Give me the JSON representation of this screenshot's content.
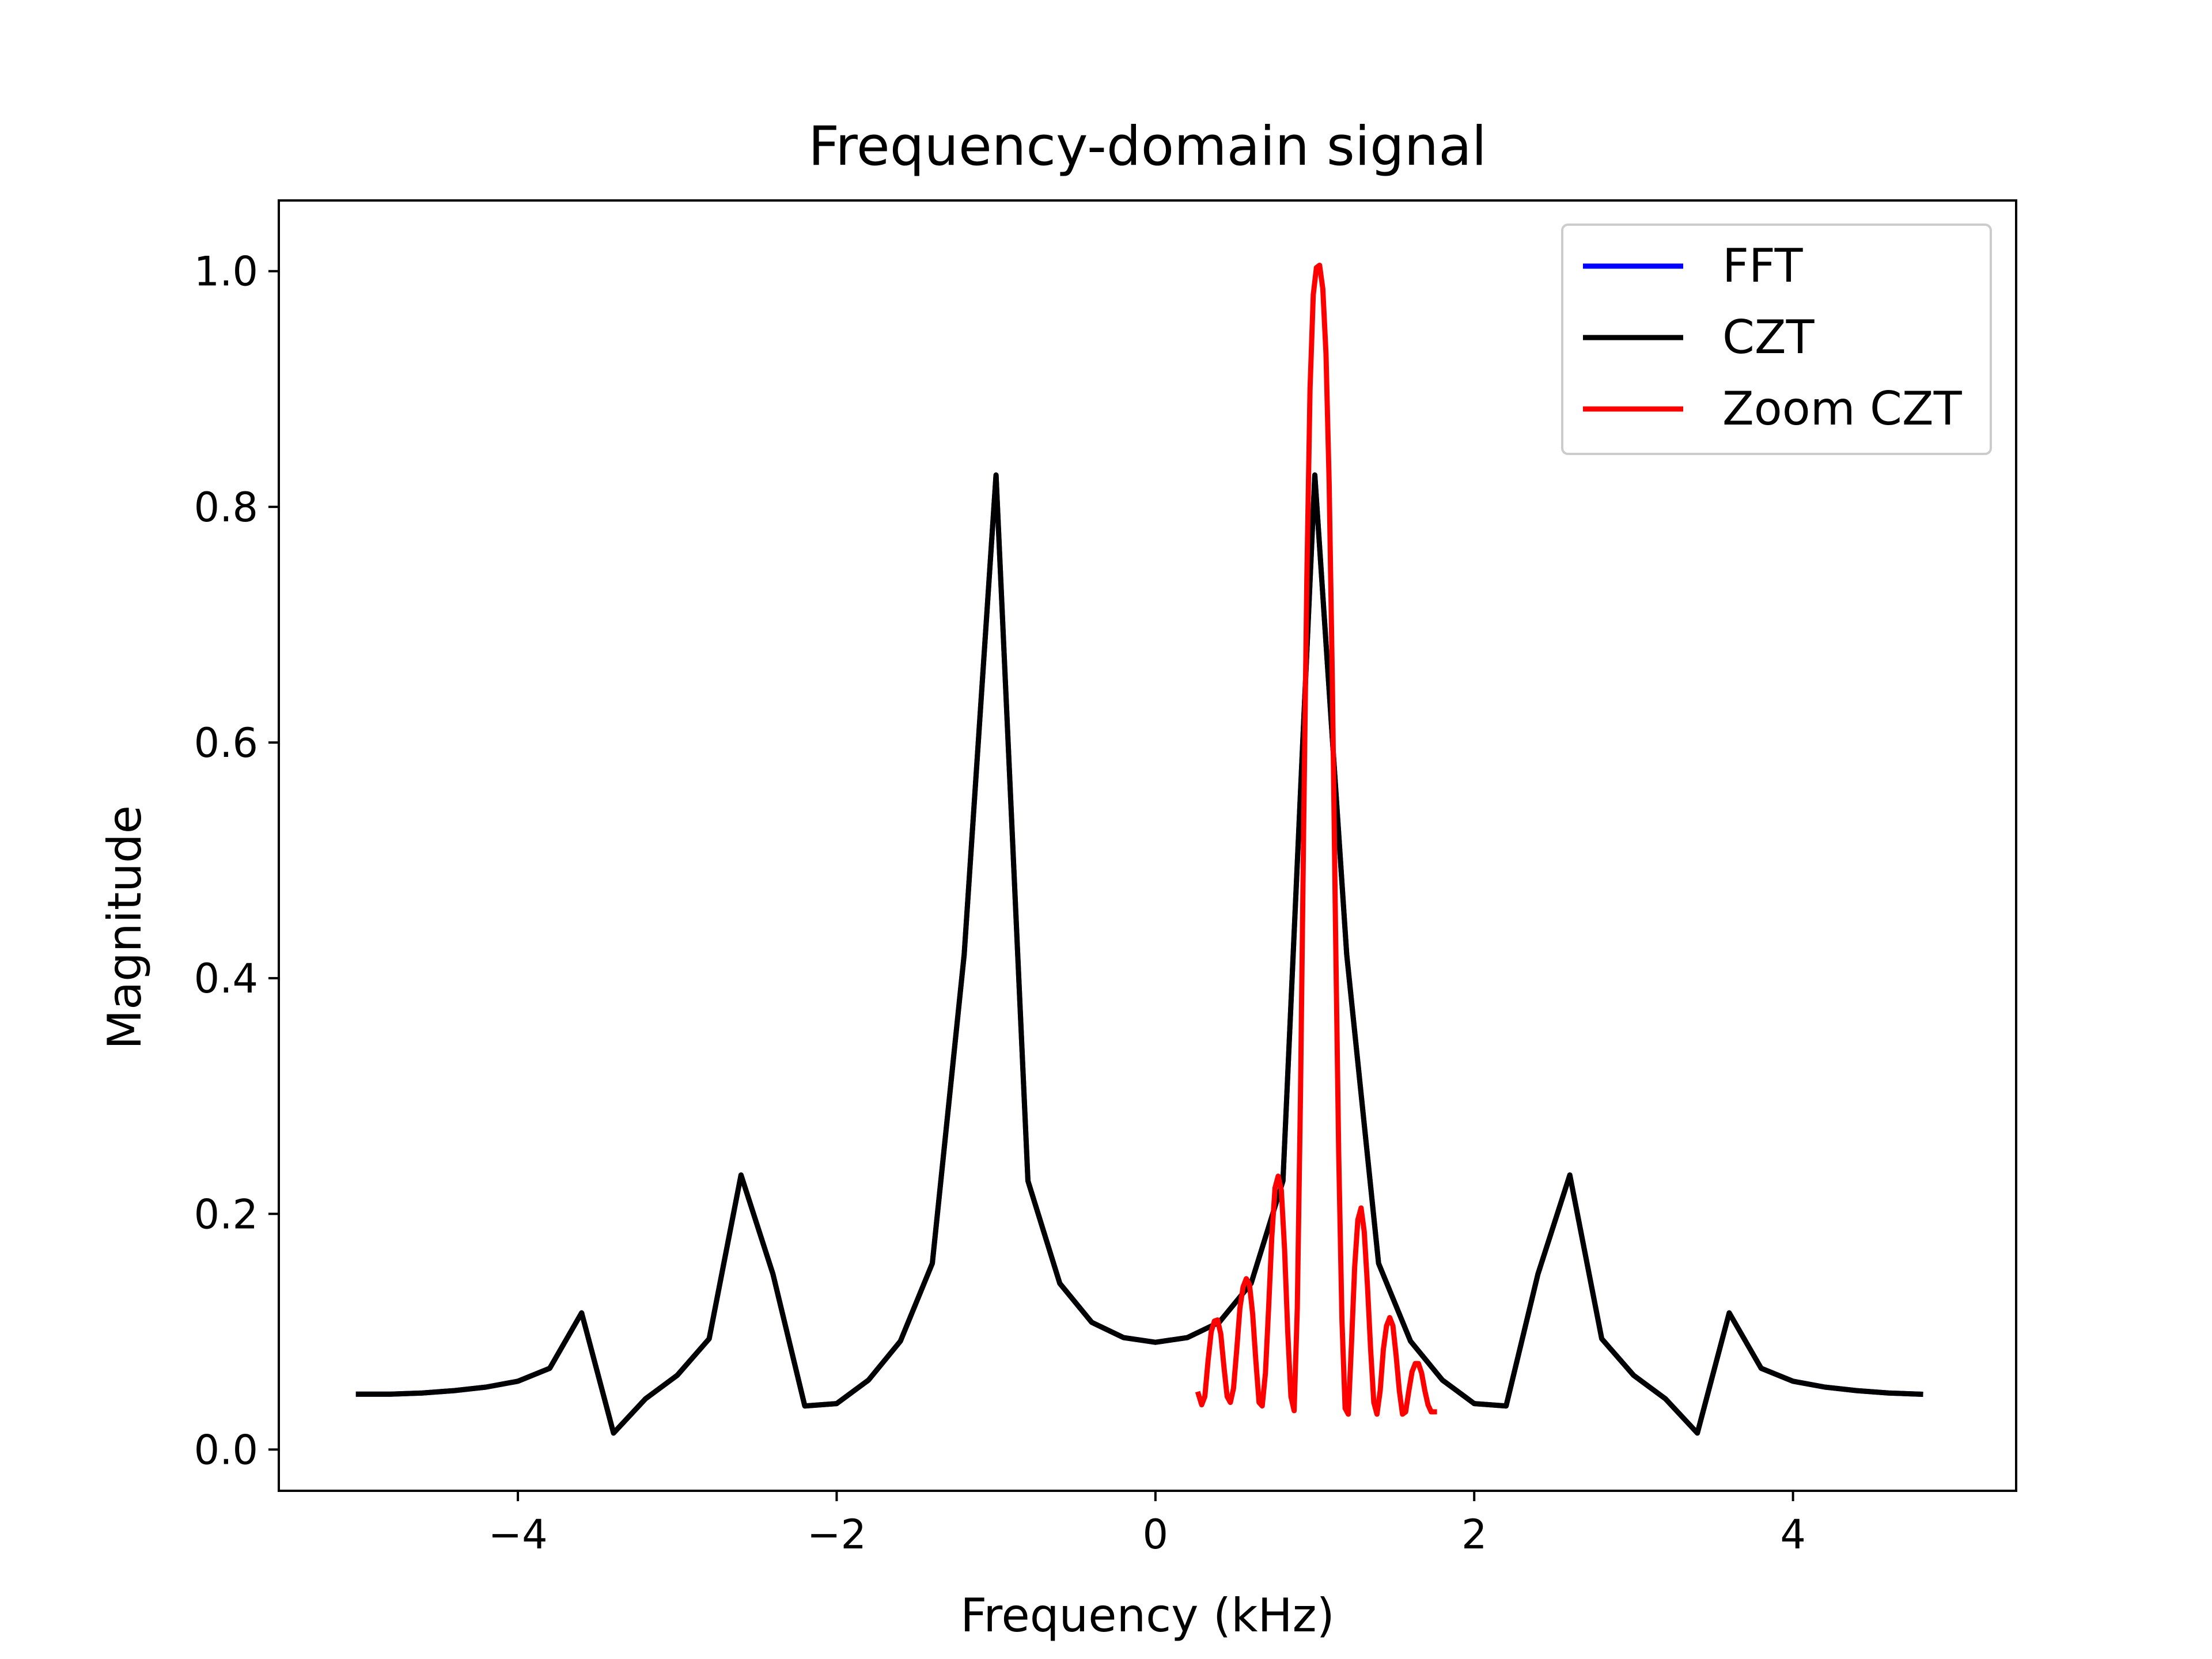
{
  "chart_data": {
    "type": "line",
    "title": "Frequency-domain signal",
    "xlabel": "Frequency (kHz)",
    "ylabel": "Magnitude",
    "xlim": [
      -5.5,
      5.4
    ],
    "ylim": [
      -0.035,
      1.06
    ],
    "xticks": [
      {
        "value": -4,
        "label": "−4"
      },
      {
        "value": -2,
        "label": "−2"
      },
      {
        "value": 0,
        "label": "0"
      },
      {
        "value": 2,
        "label": "2"
      },
      {
        "value": 4,
        "label": "4"
      }
    ],
    "yticks": [
      {
        "value": 0.0,
        "label": "0.0"
      },
      {
        "value": 0.2,
        "label": "0.2"
      },
      {
        "value": 0.4,
        "label": "0.4"
      },
      {
        "value": 0.6,
        "label": "0.6"
      },
      {
        "value": 0.8,
        "label": "0.8"
      },
      {
        "value": 1.0,
        "label": "1.0"
      }
    ],
    "grid": false,
    "legend_position": "upper right",
    "series": [
      {
        "name": "FFT",
        "color": "#0000ff",
        "points": [
          [
            -5.0,
            0.047
          ],
          [
            -4.8,
            0.047
          ],
          [
            -4.6,
            0.048
          ],
          [
            -4.4,
            0.05
          ],
          [
            -4.2,
            0.053
          ],
          [
            -4.0,
            0.058
          ],
          [
            -3.8,
            0.069
          ],
          [
            -3.6,
            0.116
          ],
          [
            -3.4,
            0.014
          ],
          [
            -3.2,
            0.043
          ],
          [
            -3.0,
            0.063
          ],
          [
            -2.8,
            0.094
          ],
          [
            -2.6,
            0.233
          ],
          [
            -2.4,
            0.149
          ],
          [
            -2.2,
            0.037
          ],
          [
            -2.0,
            0.039
          ],
          [
            -1.8,
            0.059
          ],
          [
            -1.6,
            0.092
          ],
          [
            -1.4,
            0.158
          ],
          [
            -1.2,
            0.42
          ],
          [
            -1.0,
            0.827
          ],
          [
            -0.8,
            0.228
          ],
          [
            -0.6,
            0.141
          ],
          [
            -0.4,
            0.108
          ],
          [
            -0.2,
            0.095
          ],
          [
            0.0,
            0.091
          ],
          [
            0.2,
            0.095
          ],
          [
            0.4,
            0.108
          ],
          [
            0.6,
            0.141
          ],
          [
            0.8,
            0.228
          ],
          [
            1.0,
            0.827
          ],
          [
            1.2,
            0.42
          ],
          [
            1.4,
            0.158
          ],
          [
            1.6,
            0.092
          ],
          [
            1.8,
            0.059
          ],
          [
            2.0,
            0.039
          ],
          [
            2.2,
            0.037
          ],
          [
            2.4,
            0.149
          ],
          [
            2.6,
            0.233
          ],
          [
            2.8,
            0.094
          ],
          [
            3.0,
            0.063
          ],
          [
            3.2,
            0.043
          ],
          [
            3.4,
            0.014
          ],
          [
            3.6,
            0.116
          ],
          [
            3.8,
            0.069
          ],
          [
            4.0,
            0.058
          ],
          [
            4.2,
            0.053
          ],
          [
            4.4,
            0.05
          ],
          [
            4.6,
            0.048
          ],
          [
            4.8,
            0.047
          ]
        ]
      },
      {
        "name": "CZT",
        "color": "#000000",
        "points": [
          [
            -5.0,
            0.047
          ],
          [
            -4.8,
            0.047
          ],
          [
            -4.6,
            0.048
          ],
          [
            -4.4,
            0.05
          ],
          [
            -4.2,
            0.053
          ],
          [
            -4.0,
            0.058
          ],
          [
            -3.8,
            0.069
          ],
          [
            -3.6,
            0.116
          ],
          [
            -3.4,
            0.014
          ],
          [
            -3.2,
            0.043
          ],
          [
            -3.0,
            0.063
          ],
          [
            -2.8,
            0.094
          ],
          [
            -2.6,
            0.233
          ],
          [
            -2.4,
            0.149
          ],
          [
            -2.2,
            0.037
          ],
          [
            -2.0,
            0.039
          ],
          [
            -1.8,
            0.059
          ],
          [
            -1.6,
            0.092
          ],
          [
            -1.4,
            0.158
          ],
          [
            -1.2,
            0.42
          ],
          [
            -1.0,
            0.827
          ],
          [
            -0.8,
            0.228
          ],
          [
            -0.6,
            0.141
          ],
          [
            -0.4,
            0.108
          ],
          [
            -0.2,
            0.095
          ],
          [
            0.0,
            0.091
          ],
          [
            0.2,
            0.095
          ],
          [
            0.4,
            0.108
          ],
          [
            0.6,
            0.141
          ],
          [
            0.8,
            0.228
          ],
          [
            1.0,
            0.827
          ],
          [
            1.2,
            0.42
          ],
          [
            1.4,
            0.158
          ],
          [
            1.6,
            0.092
          ],
          [
            1.8,
            0.059
          ],
          [
            2.0,
            0.039
          ],
          [
            2.2,
            0.037
          ],
          [
            2.4,
            0.149
          ],
          [
            2.6,
            0.233
          ],
          [
            2.8,
            0.094
          ],
          [
            3.0,
            0.063
          ],
          [
            3.2,
            0.043
          ],
          [
            3.4,
            0.014
          ],
          [
            3.6,
            0.116
          ],
          [
            3.8,
            0.069
          ],
          [
            4.0,
            0.058
          ],
          [
            4.2,
            0.053
          ],
          [
            4.4,
            0.05
          ],
          [
            4.6,
            0.048
          ],
          [
            4.8,
            0.047
          ]
        ]
      },
      {
        "name": "Zoom CZT",
        "color": "#ff0000",
        "points": [
          [
            0.27,
            0.047
          ],
          [
            0.29,
            0.038
          ],
          [
            0.31,
            0.045
          ],
          [
            0.33,
            0.075
          ],
          [
            0.35,
            0.1
          ],
          [
            0.37,
            0.109
          ],
          [
            0.39,
            0.11
          ],
          [
            0.41,
            0.098
          ],
          [
            0.43,
            0.07
          ],
          [
            0.45,
            0.045
          ],
          [
            0.47,
            0.04
          ],
          [
            0.49,
            0.052
          ],
          [
            0.51,
            0.085
          ],
          [
            0.53,
            0.12
          ],
          [
            0.55,
            0.138
          ],
          [
            0.57,
            0.145
          ],
          [
            0.59,
            0.14
          ],
          [
            0.61,
            0.115
          ],
          [
            0.63,
            0.075
          ],
          [
            0.65,
            0.04
          ],
          [
            0.67,
            0.037
          ],
          [
            0.69,
            0.065
          ],
          [
            0.71,
            0.12
          ],
          [
            0.73,
            0.18
          ],
          [
            0.75,
            0.222
          ],
          [
            0.77,
            0.232
          ],
          [
            0.79,
            0.22
          ],
          [
            0.81,
            0.17
          ],
          [
            0.83,
            0.1
          ],
          [
            0.85,
            0.045
          ],
          [
            0.87,
            0.033
          ],
          [
            0.89,
            0.12
          ],
          [
            0.91,
            0.3
          ],
          [
            0.93,
            0.53
          ],
          [
            0.95,
            0.74
          ],
          [
            0.97,
            0.9
          ],
          [
            0.99,
            0.98
          ],
          [
            1.01,
            1.003
          ],
          [
            1.03,
            1.005
          ],
          [
            1.05,
            0.985
          ],
          [
            1.07,
            0.93
          ],
          [
            1.09,
            0.82
          ],
          [
            1.11,
            0.65
          ],
          [
            1.13,
            0.44
          ],
          [
            1.15,
            0.25
          ],
          [
            1.17,
            0.11
          ],
          [
            1.19,
            0.035
          ],
          [
            1.21,
            0.03
          ],
          [
            1.23,
            0.09
          ],
          [
            1.25,
            0.155
          ],
          [
            1.27,
            0.195
          ],
          [
            1.29,
            0.205
          ],
          [
            1.31,
            0.185
          ],
          [
            1.33,
            0.14
          ],
          [
            1.35,
            0.085
          ],
          [
            1.37,
            0.04
          ],
          [
            1.39,
            0.03
          ],
          [
            1.41,
            0.05
          ],
          [
            1.43,
            0.085
          ],
          [
            1.45,
            0.105
          ],
          [
            1.47,
            0.112
          ],
          [
            1.49,
            0.105
          ],
          [
            1.51,
            0.08
          ],
          [
            1.53,
            0.05
          ],
          [
            1.55,
            0.03
          ],
          [
            1.57,
            0.032
          ],
          [
            1.59,
            0.05
          ],
          [
            1.61,
            0.066
          ],
          [
            1.63,
            0.073
          ],
          [
            1.65,
            0.073
          ],
          [
            1.67,
            0.065
          ],
          [
            1.69,
            0.05
          ],
          [
            1.71,
            0.038
          ],
          [
            1.73,
            0.032
          ],
          [
            1.75,
            0.032
          ]
        ]
      }
    ]
  }
}
